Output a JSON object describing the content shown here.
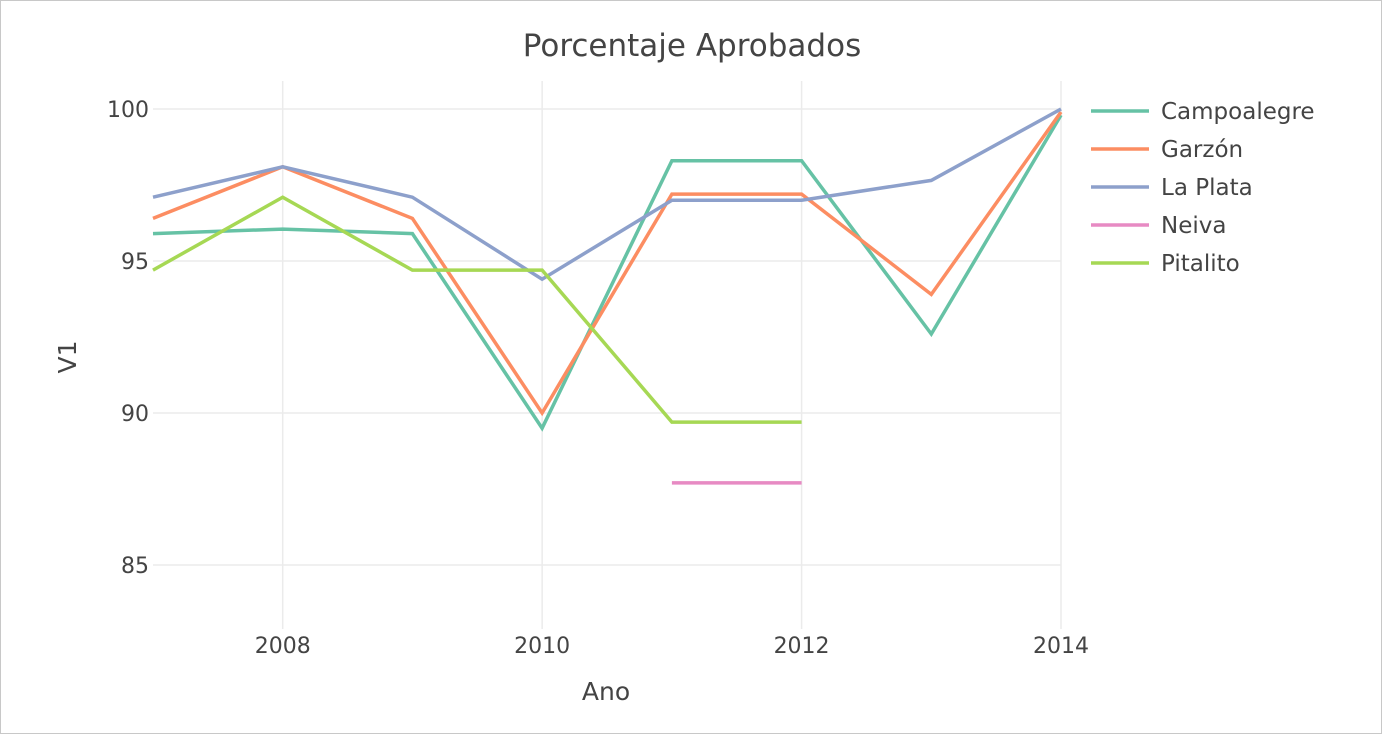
{
  "chart_data": {
    "type": "line",
    "title": "Porcentaje Aprobados",
    "xlabel": "Ano",
    "ylabel": "V1",
    "xlim": [
      2007,
      2014
    ],
    "ylim": [
      83.2,
      100.9
    ],
    "x_ticks": [
      2008,
      2010,
      2012,
      2014
    ],
    "y_ticks": [
      85,
      90,
      95,
      100
    ],
    "grid": true,
    "legend_position": "right",
    "series": [
      {
        "name": "Campoalegre",
        "color": "#66c2a5",
        "points": [
          [
            2007,
            95.9
          ],
          [
            2008,
            96.05
          ],
          [
            2009,
            95.9
          ],
          [
            2010,
            89.5
          ],
          [
            2011,
            98.3
          ],
          [
            2012,
            98.3
          ],
          [
            2013,
            92.6
          ],
          [
            2014,
            99.8
          ]
        ]
      },
      {
        "name": "Garzón",
        "color": "#fc8d62",
        "points": [
          [
            2007,
            96.4
          ],
          [
            2008,
            98.1
          ],
          [
            2009,
            96.4
          ],
          [
            2010,
            90.0
          ],
          [
            2011,
            97.2
          ],
          [
            2012,
            97.2
          ],
          [
            2013,
            93.9
          ],
          [
            2014,
            99.9
          ]
        ]
      },
      {
        "name": "La Plata",
        "color": "#8da0cb",
        "points": [
          [
            2007,
            97.1
          ],
          [
            2008,
            98.1
          ],
          [
            2009,
            97.1
          ],
          [
            2010,
            94.4
          ],
          [
            2011,
            97.0
          ],
          [
            2012,
            97.0
          ],
          [
            2013,
            97.65
          ],
          [
            2014,
            100.0
          ]
        ]
      },
      {
        "name": "Neiva",
        "color": "#e78ac3",
        "points": [
          [
            2011,
            87.7
          ],
          [
            2012,
            87.7
          ]
        ]
      },
      {
        "name": "Pitalito",
        "color": "#a6d854",
        "points": [
          [
            2007,
            94.7
          ],
          [
            2008,
            97.1
          ],
          [
            2009,
            94.7
          ],
          [
            2010,
            94.7
          ],
          [
            2011,
            89.7
          ],
          [
            2012,
            89.7
          ]
        ]
      }
    ]
  }
}
